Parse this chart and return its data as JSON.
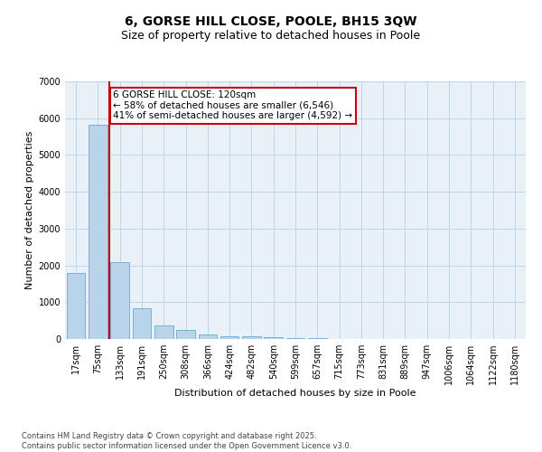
{
  "title": "6, GORSE HILL CLOSE, POOLE, BH15 3QW",
  "subtitle": "Size of property relative to detached houses in Poole",
  "xlabel": "Distribution of detached houses by size in Poole",
  "ylabel": "Number of detached properties",
  "categories": [
    "17sqm",
    "75sqm",
    "133sqm",
    "191sqm",
    "250sqm",
    "308sqm",
    "366sqm",
    "424sqm",
    "482sqm",
    "540sqm",
    "599sqm",
    "657sqm",
    "715sqm",
    "773sqm",
    "831sqm",
    "889sqm",
    "947sqm",
    "1006sqm",
    "1064sqm",
    "1122sqm",
    "1180sqm"
  ],
  "values": [
    1800,
    5820,
    2080,
    830,
    370,
    240,
    130,
    80,
    80,
    50,
    30,
    20,
    10,
    5,
    5,
    3,
    0,
    0,
    0,
    0,
    0
  ],
  "bar_color": "#b8d4ea",
  "bar_edge_color": "#6aaad4",
  "vline_color": "#cc0000",
  "annotation_text": "6 GORSE HILL CLOSE: 120sqm\n← 58% of detached houses are smaller (6,546)\n41% of semi-detached houses are larger (4,592) →",
  "annotation_box_color": "#cc0000",
  "ylim": [
    0,
    7000
  ],
  "yticks": [
    0,
    1000,
    2000,
    3000,
    4000,
    5000,
    6000,
    7000
  ],
  "grid_color": "#c0d4e8",
  "bg_color": "#e8f0f8",
  "footer": "Contains HM Land Registry data © Crown copyright and database right 2025.\nContains public sector information licensed under the Open Government Licence v3.0.",
  "title_fontsize": 10,
  "subtitle_fontsize": 9,
  "axis_label_fontsize": 8,
  "tick_fontsize": 7,
  "annotation_fontsize": 7.5,
  "footer_fontsize": 6
}
